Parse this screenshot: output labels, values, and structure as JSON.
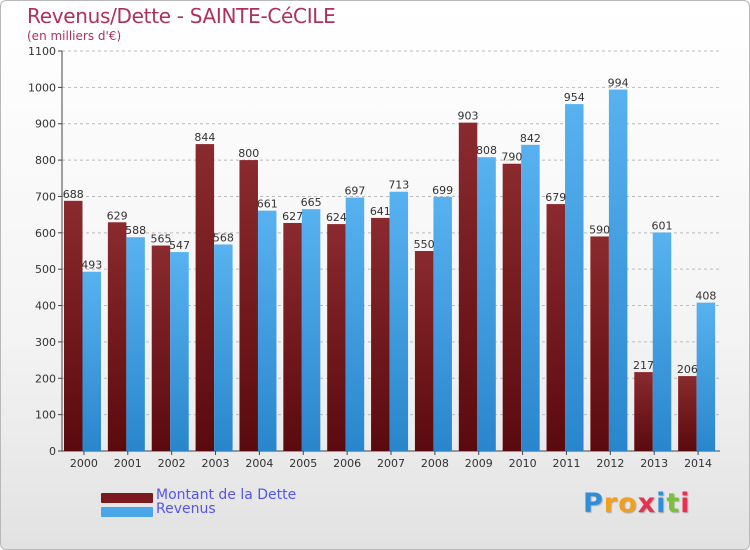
{
  "header": {
    "title": "Revenus/Dette - SAINTE-CéCILE",
    "subtitle": "(en milliers d'€)"
  },
  "legend": {
    "debt_label": "Montant de la Dette",
    "revenue_label": "Revenus"
  },
  "brand": {
    "letters": [
      "P",
      "r",
      "o",
      "x",
      "i",
      "t",
      "i"
    ],
    "colors": [
      "#2f8fd6",
      "#f0a020",
      "#f0a020",
      "#e83050",
      "#2f8fd6",
      "#7cc03a",
      "#e83050"
    ]
  },
  "colors": {
    "debt": "#7a1a1f",
    "revenue": "#4aa6e8",
    "axis": "#444444",
    "grid": "#bbbbbb",
    "title": "#b0305c",
    "legend_text": "#5555ee"
  },
  "chart_data": {
    "type": "bar",
    "title": "Revenus/Dette - SAINTE-CéCILE",
    "subtitle": "(en milliers d'€)",
    "xlabel": "",
    "ylabel": "",
    "ylim": [
      0,
      1100
    ],
    "yticks": [
      0,
      100,
      200,
      300,
      400,
      500,
      600,
      700,
      800,
      900,
      1000,
      1100
    ],
    "grid": "horizontal dashed",
    "legend_position": "bottom-left",
    "categories": [
      "2000",
      "2001",
      "2002",
      "2003",
      "2004",
      "2005",
      "2006",
      "2007",
      "2008",
      "2009",
      "2010",
      "2011",
      "2012",
      "2013",
      "2014"
    ],
    "series": [
      {
        "name": "Montant de la Dette",
        "values": [
          688,
          629,
          565,
          844,
          800,
          627,
          624,
          641,
          550,
          903,
          790,
          679,
          590,
          217,
          206
        ]
      },
      {
        "name": "Revenus",
        "values": [
          493,
          588,
          547,
          568,
          661,
          665,
          697,
          713,
          699,
          808,
          842,
          954,
          994,
          601,
          408
        ]
      }
    ]
  }
}
